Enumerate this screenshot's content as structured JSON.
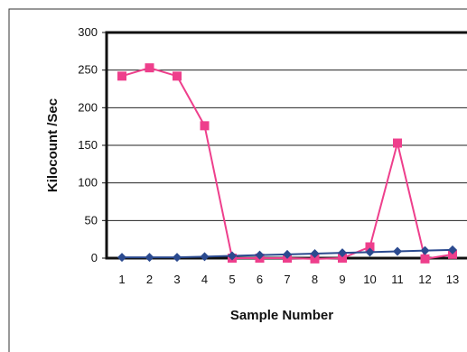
{
  "chart_data": {
    "type": "line",
    "title": "",
    "xlabel": "Sample Number",
    "ylabel": "Kilocount /Sec",
    "categories": [
      "1",
      "2",
      "3",
      "4",
      "5",
      "6",
      "7",
      "8",
      "9",
      "10",
      "11",
      "12",
      "13"
    ],
    "ylim": [
      0,
      300
    ],
    "yticks": [
      0,
      50,
      100,
      150,
      200,
      250,
      300
    ],
    "grid": "horizontal",
    "legend": "none",
    "series": [
      {
        "color": "#ee3f8c",
        "marker": "square",
        "values": [
          242,
          253,
          242,
          176,
          0,
          0,
          0,
          -1,
          0,
          15,
          153,
          -1,
          5
        ]
      },
      {
        "color": "#2b4a8f",
        "marker": "diamond",
        "values": [
          1,
          1,
          1,
          2,
          3,
          4,
          5,
          6,
          7,
          8,
          9,
          10,
          11
        ]
      }
    ]
  }
}
